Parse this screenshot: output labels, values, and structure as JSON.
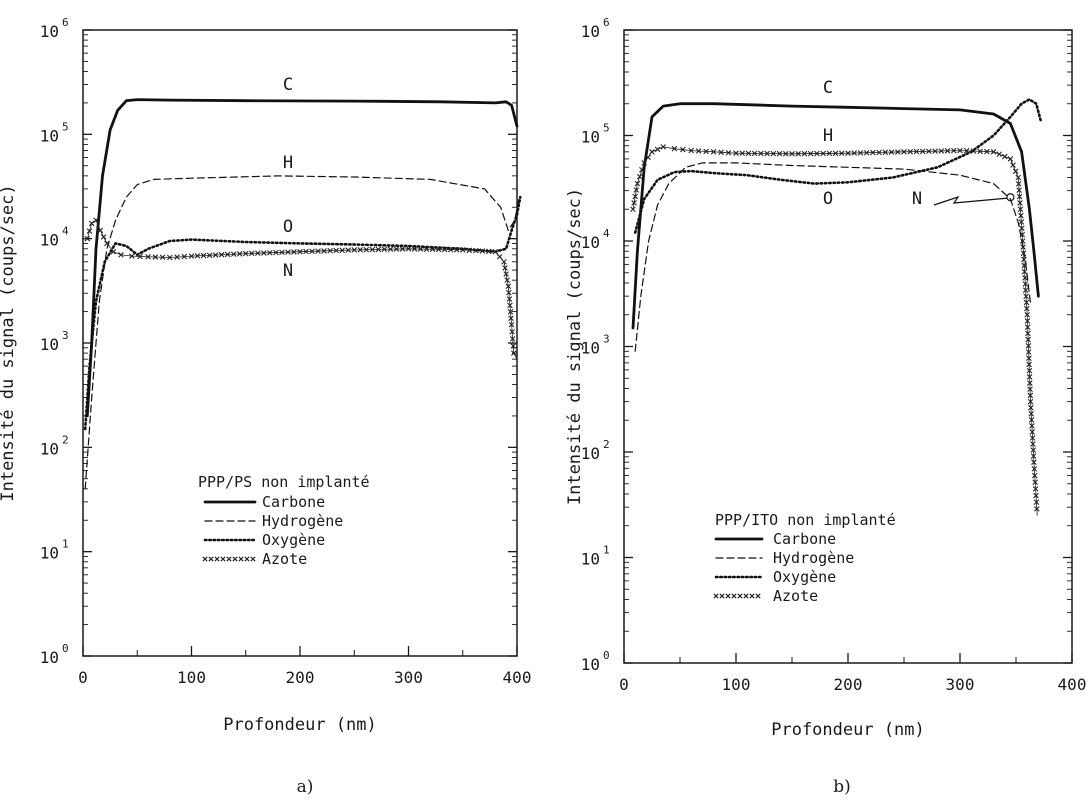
{
  "chart_data": [
    {
      "type": "line",
      "panel_label": "a)",
      "xlabel": "Profondeur (nm)",
      "ylabel": "Intensité du signal (coups/sec)",
      "xlim": [
        0,
        400
      ],
      "ylim": [
        1,
        1000000
      ],
      "yscale": "log",
      "x_ticks": [
        "0",
        "100",
        "200",
        "300",
        "400"
      ],
      "y_ticks": [
        {
          "base": "10",
          "exp": "0"
        },
        {
          "base": "10",
          "exp": "1"
        },
        {
          "base": "10",
          "exp": "2"
        },
        {
          "base": "10",
          "exp": "3"
        },
        {
          "base": "10",
          "exp": "4"
        },
        {
          "base": "10",
          "exp": "5"
        },
        {
          "base": "10",
          "exp": "6"
        }
      ],
      "legend": {
        "title": "PPP/PS non implanté",
        "placement": "bottom-right",
        "entries": [
          "Carbone",
          "Hydrogène",
          "Oxygène",
          "Azote"
        ]
      },
      "series": [
        {
          "name": "Carbone",
          "label": "C",
          "style": "solid",
          "x": [
            4,
            8,
            12,
            18,
            25,
            32,
            40,
            50,
            80,
            150,
            250,
            330,
            380,
            390,
            395,
            400
          ],
          "y": [
            200,
            1000,
            8000,
            40000,
            110000,
            170000,
            210000,
            215000,
            213000,
            210000,
            208000,
            205000,
            200000,
            205000,
            190000,
            120000
          ]
        },
        {
          "name": "Hydrogène",
          "label": "H",
          "style": "dashed",
          "x": [
            2,
            8,
            15,
            22,
            30,
            40,
            50,
            65,
            100,
            180,
            250,
            320,
            370,
            385,
            392,
            398,
            402
          ],
          "y": [
            40,
            300,
            2500,
            8000,
            15000,
            25000,
            33000,
            37000,
            38000,
            40000,
            39000,
            37000,
            30000,
            20000,
            12000,
            15000,
            25000
          ]
        },
        {
          "name": "Oxygène",
          "label": "O",
          "style": "dotted",
          "x": [
            2,
            6,
            12,
            20,
            30,
            40,
            50,
            60,
            80,
            100,
            150,
            200,
            250,
            300,
            350,
            380,
            390,
            395,
            400,
            403
          ],
          "y": [
            150,
            600,
            2500,
            6000,
            9000,
            8500,
            7000,
            8000,
            9500,
            9800,
            9300,
            9000,
            8800,
            8500,
            8000,
            7500,
            8000,
            12000,
            17000,
            25000
          ]
        },
        {
          "name": "Azote",
          "label": "N",
          "style": "cross",
          "x": [
            4,
            8,
            12,
            16,
            22,
            28,
            35,
            45,
            60,
            80,
            100,
            150,
            200,
            250,
            300,
            350,
            380,
            388,
            392,
            395,
            397,
            400
          ],
          "y": [
            10000,
            14000,
            15000,
            12000,
            9000,
            7500,
            7000,
            6800,
            6700,
            6600,
            6800,
            7200,
            7500,
            7800,
            8000,
            7800,
            7500,
            6000,
            3500,
            1500,
            800,
            700
          ]
        }
      ],
      "annotations": [
        "C",
        "H",
        "O",
        "N"
      ]
    },
    {
      "type": "line",
      "panel_label": "b)",
      "xlabel": "Profondeur (nm)",
      "ylabel": "Intensité du signal (coups/sec)",
      "xlim": [
        0,
        400
      ],
      "ylim": [
        1,
        1000000
      ],
      "yscale": "log",
      "x_ticks": [
        "0",
        "100",
        "200",
        "300",
        "400"
      ],
      "y_ticks": [
        {
          "base": "10",
          "exp": "0"
        },
        {
          "base": "10",
          "exp": "1"
        },
        {
          "base": "10",
          "exp": "2"
        },
        {
          "base": "10",
          "exp": "3"
        },
        {
          "base": "10",
          "exp": "4"
        },
        {
          "base": "10",
          "exp": "5"
        },
        {
          "base": "10",
          "exp": "6"
        }
      ],
      "legend": {
        "title": "PPP/ITO non implanté",
        "placement": "bottom-left",
        "entries": [
          "Carbone",
          "Hydrogène",
          "Oxygène",
          "Azote"
        ]
      },
      "series": [
        {
          "name": "Carbone",
          "label": "C",
          "style": "solid",
          "x": [
            8,
            12,
            18,
            25,
            35,
            50,
            80,
            150,
            200,
            250,
            300,
            330,
            345,
            355,
            362,
            366,
            370
          ],
          "y": [
            1500,
            8000,
            50000,
            150000,
            190000,
            200000,
            200000,
            190000,
            185000,
            180000,
            175000,
            160000,
            130000,
            70000,
            20000,
            8000,
            3000
          ]
        },
        {
          "name": "Hydrogène",
          "label": "H",
          "style": "dashed",
          "x": [
            10,
            15,
            22,
            30,
            40,
            55,
            70,
            100,
            150,
            200,
            250,
            300,
            330,
            345,
            352,
            358,
            363
          ],
          "y": [
            900,
            3000,
            10000,
            22000,
            35000,
            50000,
            55000,
            55000,
            52000,
            50000,
            48000,
            42000,
            35000,
            25000,
            15000,
            7000,
            2500
          ]
        },
        {
          "name": "Oxygène",
          "label": "O",
          "style": "dotted",
          "x": [
            10,
            18,
            30,
            45,
            60,
            80,
            110,
            140,
            170,
            200,
            240,
            280,
            310,
            330,
            345,
            355,
            362,
            368,
            372
          ],
          "y": [
            12000,
            25000,
            38000,
            45000,
            46000,
            44000,
            42000,
            38000,
            35000,
            36000,
            40000,
            50000,
            70000,
            100000,
            150000,
            200000,
            220000,
            200000,
            140000
          ]
        },
        {
          "name": "Azote",
          "label": "N",
          "style": "cross",
          "x": [
            8,
            12,
            18,
            25,
            35,
            45,
            60,
            80,
            100,
            150,
            200,
            250,
            300,
            330,
            345,
            352,
            356,
            360,
            363,
            366,
            369
          ],
          "y": [
            20000,
            35000,
            55000,
            70000,
            78000,
            75000,
            72000,
            70000,
            68000,
            67000,
            68000,
            70000,
            72000,
            70000,
            60000,
            40000,
            10000,
            2000,
            300,
            80,
            25
          ]
        }
      ],
      "annotations": [
        "C",
        "N",
        "O",
        "H"
      ]
    }
  ]
}
